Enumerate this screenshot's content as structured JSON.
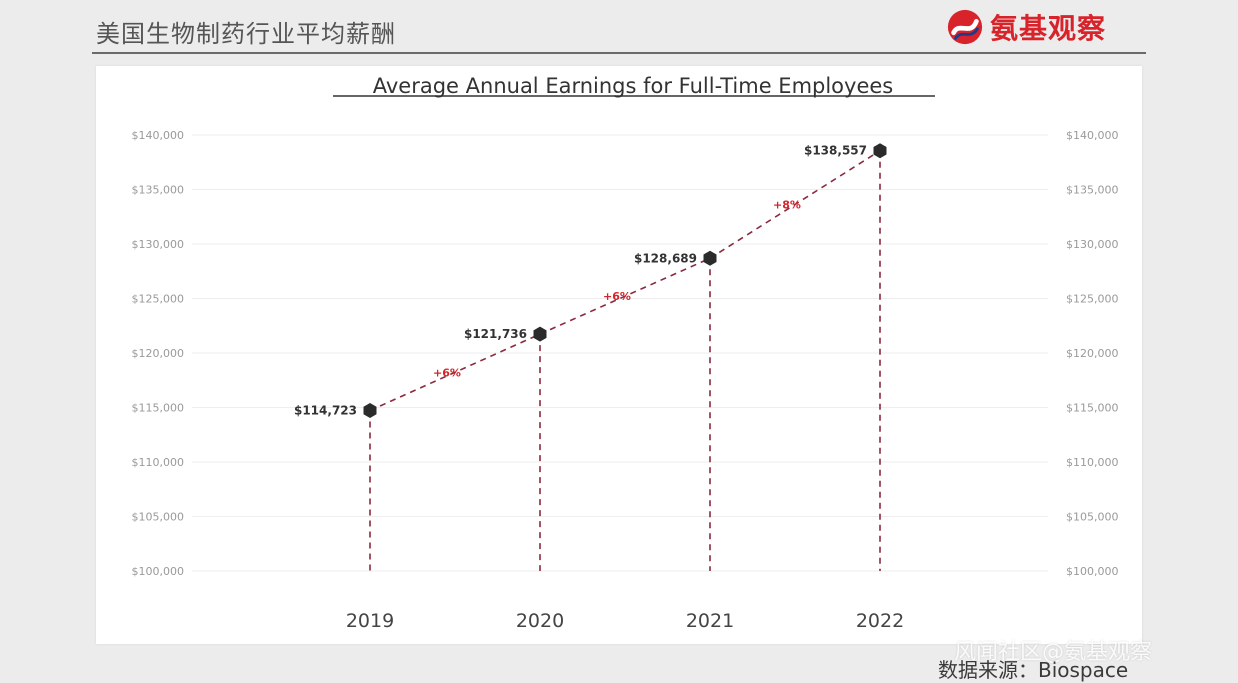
{
  "header": {
    "title": "美国生物制药行业平均薪酬",
    "logo_text": "氨基观察"
  },
  "footer": {
    "source": "数据来源：Biospace",
    "watermark": "风闻社区@氨基观察"
  },
  "colors": {
    "accent": "#d8232a",
    "line": "#8a2a3e",
    "marker": "#2b2b2b",
    "grid": "#eeeeee"
  },
  "chart_data": {
    "type": "line",
    "title": "Average Annual Earnings for Full-Time Employees",
    "categories": [
      "2019",
      "2020",
      "2021",
      "2022"
    ],
    "values": [
      114723,
      121736,
      128689,
      138557
    ],
    "value_labels": [
      "$114,723",
      "$121,736",
      "$128,689",
      "$138,557"
    ],
    "growth_labels": [
      "+6%",
      "+6%",
      "+8%"
    ],
    "ylim": [
      100000,
      140000
    ],
    "y_ticks": [
      140000,
      135000,
      130000,
      125000,
      120000,
      115000,
      110000,
      105000,
      100000
    ],
    "y_tick_labels": [
      "$140,000",
      "$135,000",
      "$130,000",
      "$125,000",
      "$120,000",
      "$115,000",
      "$110,000",
      "$105,000",
      "$100,000"
    ],
    "xlabel": "",
    "ylabel": "",
    "grid": true,
    "legend": "none",
    "dual_y_axis": true
  }
}
